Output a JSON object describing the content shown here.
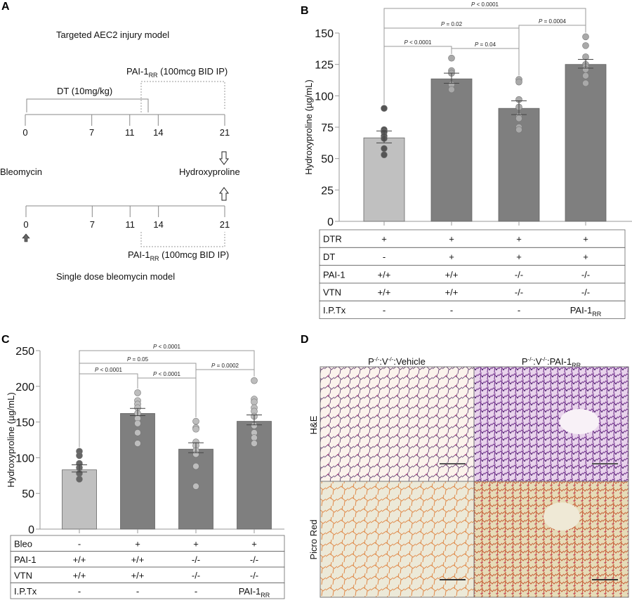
{
  "panels": {
    "a": "A",
    "b": "B",
    "c": "C",
    "d": "D"
  },
  "panel_a": {
    "top_title": "Targeted AEC2 injury model",
    "dt_label": "DT (10mg/kg)",
    "pai_label_main": "PAI-1",
    "pai_label_sub": "RR",
    "pai_label_rest": " (100mcg BID IP)",
    "days": [
      0,
      7,
      11,
      14,
      21
    ],
    "bleomycin": "Bleomycin",
    "hydroxyproline": "Hydroxyproline",
    "bottom_title": "Single dose bleomycin model"
  },
  "panel_d": {
    "col1_main": "P",
    "col1_sup1": "-/-",
    "col1_mid": ":V",
    "col1_sup2": "-/-",
    "col1_end": ":Vehicle",
    "col2_main": "P",
    "col2_sup1": "-/-",
    "col2_mid": ":V",
    "col2_sup2": "-/-",
    "col2_end": ":PAI-1",
    "col2_sub": "RR",
    "row1": "H&E",
    "row2": "Picro Red"
  },
  "chart_data": [
    {
      "id": "B",
      "type": "bar",
      "ylabel": "Hydroxyproline (µg/mL)",
      "ylim": [
        0,
        150
      ],
      "yticks": [
        0,
        25,
        50,
        75,
        100,
        125,
        150
      ],
      "values": [
        66.5,
        113.5,
        90,
        125
      ],
      "sem": [
        [
          62.5,
          72
        ],
        [
          110,
          118
        ],
        [
          85,
          96
        ],
        [
          122,
          129
        ]
      ],
      "points": [
        [
          90,
          73,
          71,
          68,
          66,
          58,
          53
        ],
        [
          130,
          120,
          118,
          109,
          105
        ],
        [
          113,
          111,
          97,
          91,
          84,
          82,
          75,
          73
        ],
        [
          147,
          140,
          131,
          125,
          123,
          121,
          116,
          110
        ]
      ],
      "colors": {
        "control_bar": "#c0c0c0",
        "bar": "#7f7f7f",
        "control_points": "#555555",
        "points": "#a9a9a9"
      },
      "comparisons": [
        {
          "groups": [
            1,
            4
          ],
          "label": "P < 0.0001"
        },
        {
          "groups": [
            1,
            3
          ],
          "label": "P = 0.02"
        },
        {
          "groups": [
            3,
            4
          ],
          "label": "P = 0.0004"
        },
        {
          "groups": [
            1,
            2
          ],
          "label": "P < 0.0001"
        },
        {
          "groups": [
            2,
            3
          ],
          "label": "P = 0.04"
        }
      ],
      "table": [
        {
          "label": "DTR",
          "cells": [
            "+",
            "+",
            "+",
            "+"
          ]
        },
        {
          "label": "DT",
          "cells": [
            "-",
            "+",
            "+",
            "+"
          ]
        },
        {
          "label": "PAI-1",
          "cells": [
            "+/+",
            "+/+",
            "-/-",
            "-/-"
          ]
        },
        {
          "label": "VTN",
          "cells": [
            "+/+",
            "+/+",
            "-/-",
            "-/-"
          ]
        },
        {
          "label": "I.P.Tx",
          "cells": [
            "-",
            "-",
            "-",
            "PAI-1"
          ],
          "last_sub": "RR"
        }
      ]
    },
    {
      "id": "C",
      "type": "bar",
      "ylabel": "Hydroxyproline (µg/mL)",
      "ylim": [
        0,
        250
      ],
      "yticks": [
        0,
        50,
        100,
        150,
        200,
        250
      ],
      "values": [
        83,
        162,
        112,
        151
      ],
      "sem": [
        [
          80,
          90
        ],
        [
          159,
          169
        ],
        [
          107,
          121
        ],
        [
          146,
          160
        ]
      ],
      "points": [
        [
          109,
          103,
          92,
          86,
          78,
          70
        ],
        [
          191,
          180,
          175,
          170,
          162,
          155,
          148,
          135,
          120
        ],
        [
          151,
          142,
          140,
          122,
          117,
          110,
          105,
          88,
          60
        ],
        [
          208,
          182,
          178,
          170,
          165,
          158,
          145,
          135,
          128,
          120
        ]
      ],
      "colors": {
        "control_bar": "#c0c0c0",
        "bar": "#7f7f7f",
        "control_points": "#666666",
        "points": "#bdbdbd"
      },
      "comparisons": [
        {
          "groups": [
            1,
            4
          ],
          "label": "P < 0.0001"
        },
        {
          "groups": [
            1,
            3
          ],
          "label": "P = 0.05"
        },
        {
          "groups": [
            3,
            4
          ],
          "label": "P = 0.0002"
        },
        {
          "groups": [
            1,
            2
          ],
          "label": "P < 0.0001"
        },
        {
          "groups": [
            2,
            3
          ],
          "label": "P < 0.0001"
        }
      ],
      "table": [
        {
          "label": "Bleo",
          "cells": [
            "-",
            "+",
            "+",
            "+"
          ]
        },
        {
          "label": "PAI-1",
          "cells": [
            "+/+",
            "+/+",
            "-/-",
            "-/-"
          ]
        },
        {
          "label": "VTN",
          "cells": [
            "+/+",
            "+/+",
            "-/-",
            "-/-"
          ]
        },
        {
          "label": "I.P.Tx",
          "cells": [
            "-",
            "-",
            "-",
            "PAI-1"
          ],
          "last_sub": "RR"
        }
      ]
    }
  ]
}
